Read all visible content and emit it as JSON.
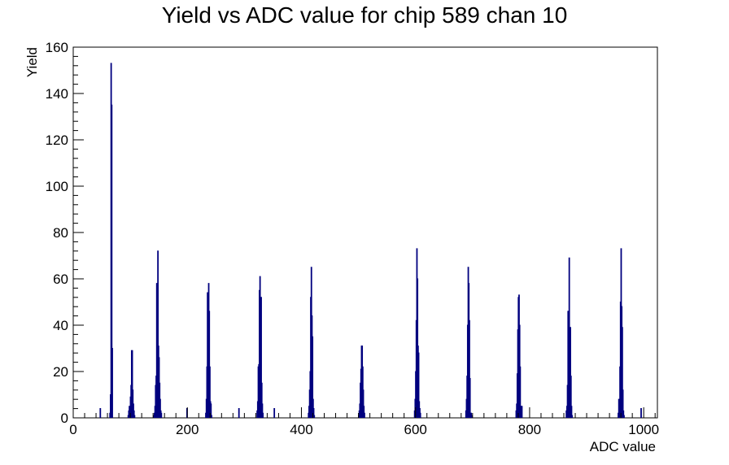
{
  "chart_data": {
    "type": "bar",
    "title": "Yield vs ADC value for chip 589 chan 10",
    "xlabel": "ADC value",
    "ylabel": "Yield",
    "xlim": [
      0,
      1024
    ],
    "ylim": [
      0,
      160
    ],
    "x_ticks": [
      0,
      200,
      400,
      600,
      800,
      1000
    ],
    "y_ticks": [
      0,
      20,
      40,
      60,
      80,
      100,
      120,
      140,
      160
    ],
    "grid": false,
    "series": [
      {
        "color": "#00007f",
        "bins": [
          [
            47,
            4
          ],
          [
            64,
            2
          ],
          [
            65,
            10
          ],
          [
            66,
            153
          ],
          [
            67,
            135
          ],
          [
            68,
            30
          ],
          [
            96,
            1
          ],
          [
            97,
            3
          ],
          [
            98,
            5
          ],
          [
            99,
            3
          ],
          [
            100,
            9
          ],
          [
            101,
            14
          ],
          [
            102,
            29
          ],
          [
            103,
            29
          ],
          [
            104,
            12
          ],
          [
            105,
            6
          ],
          [
            106,
            3
          ],
          [
            107,
            1
          ],
          [
            141,
            1
          ],
          [
            142,
            2
          ],
          [
            143,
            5
          ],
          [
            144,
            14
          ],
          [
            145,
            18
          ],
          [
            146,
            58
          ],
          [
            147,
            40
          ],
          [
            148,
            72
          ],
          [
            149,
            31
          ],
          [
            150,
            26
          ],
          [
            151,
            15
          ],
          [
            152,
            8
          ],
          [
            153,
            3
          ],
          [
            154,
            2
          ],
          [
            199,
            4
          ],
          [
            232,
            2
          ],
          [
            233,
            8
          ],
          [
            234,
            22
          ],
          [
            235,
            54
          ],
          [
            236,
            35
          ],
          [
            237,
            58
          ],
          [
            238,
            46
          ],
          [
            239,
            22
          ],
          [
            240,
            7
          ],
          [
            241,
            6
          ],
          [
            242,
            1
          ],
          [
            290,
            4
          ],
          [
            322,
            3
          ],
          [
            323,
            7
          ],
          [
            324,
            22
          ],
          [
            325,
            23
          ],
          [
            326,
            55
          ],
          [
            327,
            61
          ],
          [
            328,
            35
          ],
          [
            329,
            52
          ],
          [
            330,
            15
          ],
          [
            331,
            6
          ],
          [
            332,
            2
          ],
          [
            352,
            4
          ],
          [
            412,
            2
          ],
          [
            413,
            5
          ],
          [
            414,
            12
          ],
          [
            415,
            20
          ],
          [
            416,
            52
          ],
          [
            417,
            65
          ],
          [
            418,
            44
          ],
          [
            419,
            35
          ],
          [
            420,
            8
          ],
          [
            421,
            4
          ],
          [
            422,
            1
          ],
          [
            500,
            1
          ],
          [
            501,
            3
          ],
          [
            502,
            6
          ],
          [
            503,
            15
          ],
          [
            504,
            21
          ],
          [
            505,
            31
          ],
          [
            506,
            31
          ],
          [
            507,
            22
          ],
          [
            508,
            12
          ],
          [
            509,
            5
          ],
          [
            510,
            2
          ],
          [
            598,
            3
          ],
          [
            599,
            8
          ],
          [
            600,
            20
          ],
          [
            601,
            42
          ],
          [
            602,
            73
          ],
          [
            603,
            60
          ],
          [
            604,
            31
          ],
          [
            605,
            28
          ],
          [
            606,
            7
          ],
          [
            607,
            4
          ],
          [
            608,
            2
          ],
          [
            688,
            3
          ],
          [
            689,
            8
          ],
          [
            690,
            18
          ],
          [
            691,
            40
          ],
          [
            692,
            65
          ],
          [
            693,
            58
          ],
          [
            694,
            42
          ],
          [
            695,
            17
          ],
          [
            696,
            2
          ],
          [
            697,
            2
          ],
          [
            698,
            1
          ],
          [
            776,
            3
          ],
          [
            777,
            6
          ],
          [
            778,
            19
          ],
          [
            779,
            38
          ],
          [
            780,
            52
          ],
          [
            781,
            53
          ],
          [
            782,
            40
          ],
          [
            783,
            22
          ],
          [
            784,
            5
          ],
          [
            785,
            2
          ],
          [
            786,
            5
          ],
          [
            864,
            3
          ],
          [
            865,
            5
          ],
          [
            866,
            14
          ],
          [
            867,
            46
          ],
          [
            868,
            37
          ],
          [
            869,
            69
          ],
          [
            870,
            38
          ],
          [
            871,
            39
          ],
          [
            872,
            18
          ],
          [
            873,
            5
          ],
          [
            874,
            1
          ],
          [
            955,
            2
          ],
          [
            956,
            8
          ],
          [
            957,
            5
          ],
          [
            958,
            22
          ],
          [
            959,
            50
          ],
          [
            960,
            73
          ],
          [
            961,
            48
          ],
          [
            962,
            39
          ],
          [
            963,
            12
          ],
          [
            964,
            3
          ],
          [
            965,
            1
          ],
          [
            995,
            4
          ]
        ]
      }
    ]
  }
}
